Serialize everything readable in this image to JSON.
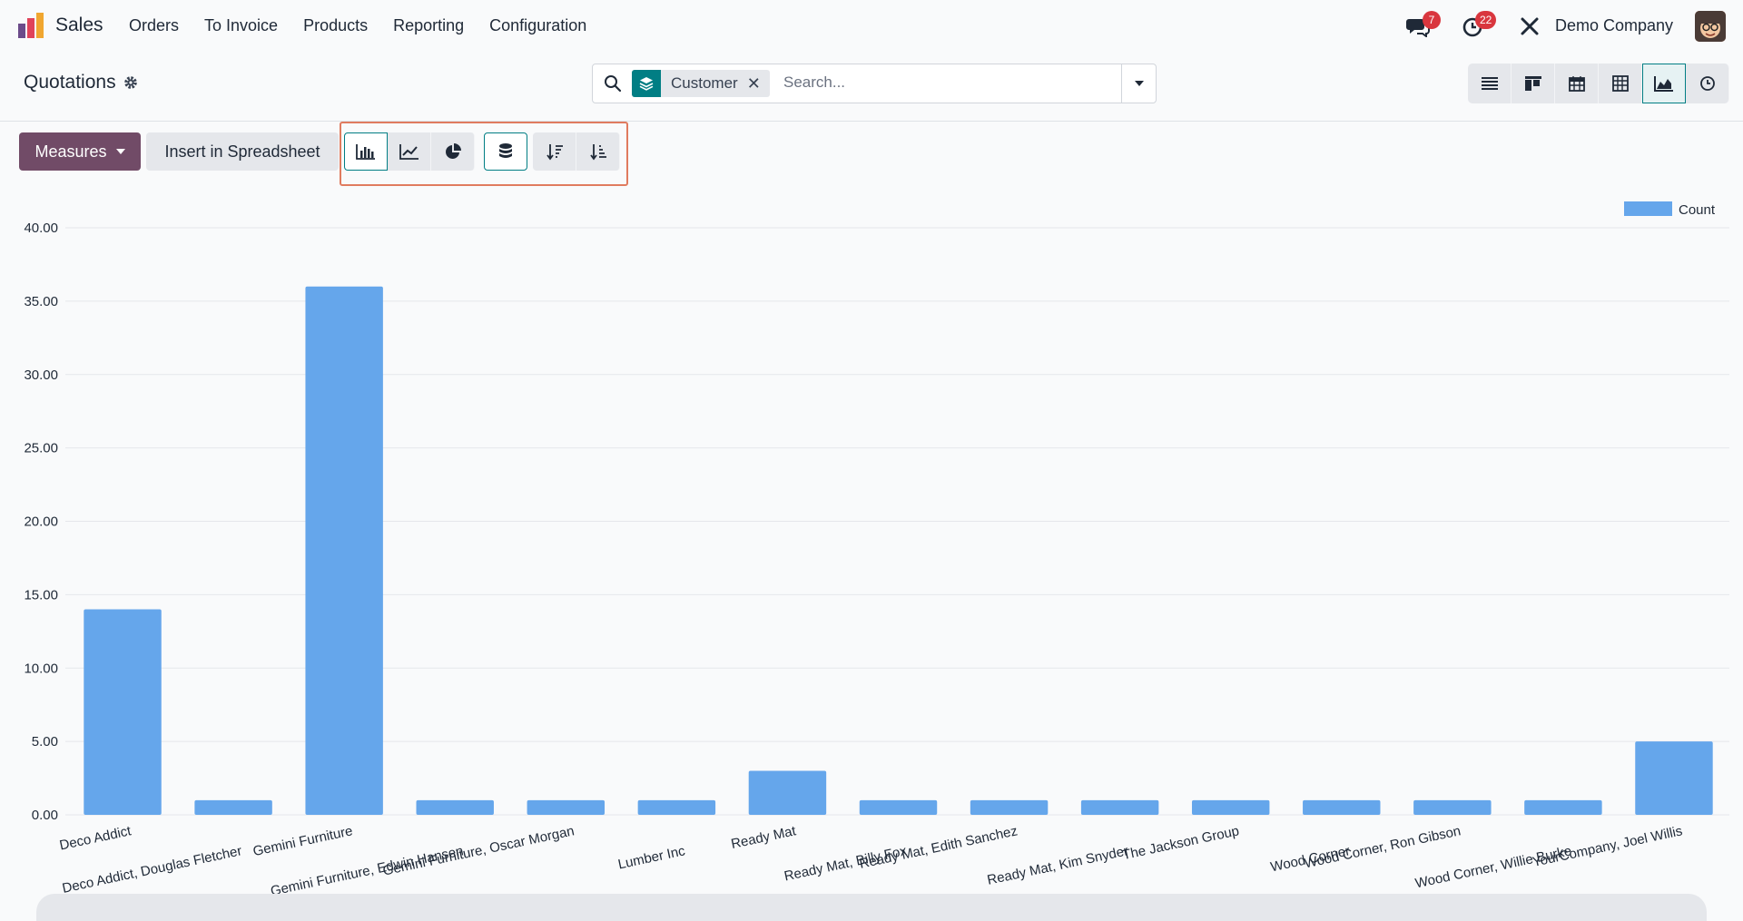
{
  "navbar": {
    "app_name": "Sales",
    "menu": [
      "Orders",
      "To Invoice",
      "Products",
      "Reporting",
      "Configuration"
    ],
    "messages_count": "7",
    "activities_count": "22",
    "company": "Demo Company"
  },
  "control_panel": {
    "title": "Quotations",
    "facet_label": "Customer",
    "search_placeholder": "Search..."
  },
  "toolbar": {
    "measures_label": "Measures",
    "insert_label": "Insert in Spreadsheet"
  },
  "colors": {
    "accent": "#714b67",
    "teal": "#017e84",
    "bar": "#65a6eb",
    "highlight": "#e07b5f"
  },
  "chart_data": {
    "type": "bar",
    "categories": [
      "Deco Addict",
      "Deco Addict, Douglas Fletcher",
      "Gemini Furniture",
      "Gemini Furniture, Edwin Hansen",
      "Gemini Furniture, Oscar Morgan",
      "Lumber Inc",
      "Ready Mat",
      "Ready Mat, Billy Fox",
      "Ready Mat, Edith Sanchez",
      "Ready Mat, Kim Snyder",
      "The Jackson Group",
      "Wood Corner",
      "Wood Corner, Ron Gibson",
      "Wood Corner, Willie Burke",
      "YourCompany, Joel Willis"
    ],
    "series": [
      {
        "name": "Count",
        "values": [
          14,
          1,
          36,
          1,
          1,
          1,
          3,
          1,
          1,
          1,
          1,
          1,
          1,
          1,
          5
        ]
      }
    ],
    "yticks": [
      "0.00",
      "5.00",
      "10.00",
      "15.00",
      "20.00",
      "25.00",
      "30.00",
      "35.00",
      "40.00"
    ],
    "ylim": [
      0,
      40
    ],
    "grid": true,
    "legend": "top-right"
  }
}
